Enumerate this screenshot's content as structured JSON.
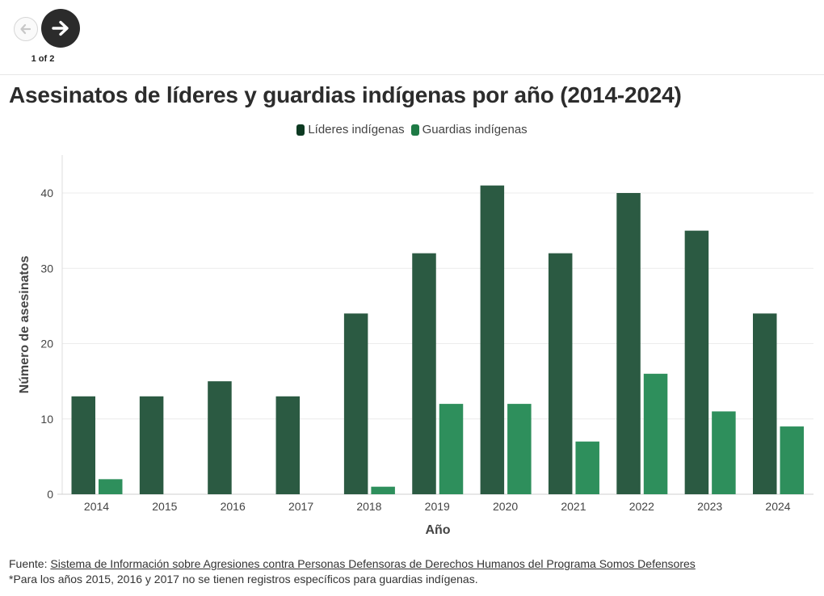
{
  "nav": {
    "page_indicator": "1 of 2"
  },
  "title": "Asesinatos de líderes y guardias indígenas por año (2014-2024)",
  "footer": {
    "source_prefix": "Fuente: ",
    "source_link": "Sistema de Información sobre Agresiones contra Personas Defensoras de Derechos Humanos del Programa Somos Defensores",
    "note": "*Para los años 2015, 2016 y 2017 no se tienen registros específicos para guardias indígenas."
  },
  "chart_data": {
    "type": "bar",
    "xlabel": "Año",
    "ylabel": "Número de asesinatos",
    "categories": [
      "2014",
      "2015",
      "2016",
      "2017",
      "2018",
      "2019",
      "2020",
      "2021",
      "2022",
      "2023",
      "2024"
    ],
    "ylim": [
      0,
      45
    ],
    "yticks": [
      0,
      10,
      20,
      30,
      40
    ],
    "grid": true,
    "legend_position": "top-center",
    "series": [
      {
        "name": "Líderes indígenas",
        "color": "#2b5a42",
        "legend_color": "#0d3a22",
        "values": [
          13,
          13,
          15,
          13,
          24,
          32,
          41,
          32,
          40,
          35,
          24
        ]
      },
      {
        "name": "Guardias indígenas",
        "color": "#2e8f5c",
        "legend_color": "#1e7a45",
        "values": [
          2,
          null,
          null,
          null,
          1,
          12,
          12,
          7,
          16,
          11,
          9
        ]
      }
    ]
  }
}
